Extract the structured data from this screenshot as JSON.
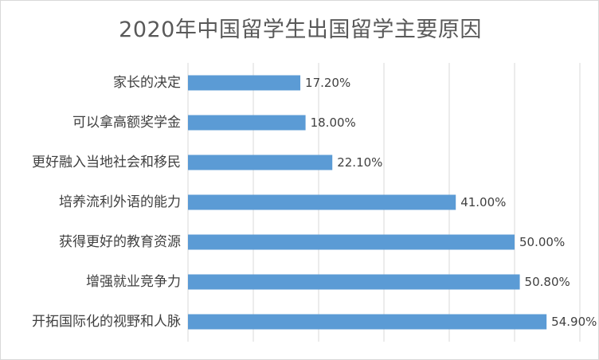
{
  "chart_data": {
    "type": "bar",
    "orientation": "horizontal",
    "title": "2020年中国留学生出国留学主要原因",
    "categories": [
      "家长的决定",
      "可以拿高额奖学金",
      "更好融入当地社会和移民",
      "培养流利外语的能力",
      "获得更好的教育资源",
      "增强就业竞争力",
      "开拓国际化的视野和人脉"
    ],
    "values": [
      17.2,
      18.0,
      22.1,
      41.0,
      50.0,
      50.8,
      54.9
    ],
    "value_labels": [
      "17.20%",
      "18.00%",
      "22.10%",
      "41.00%",
      "50.00%",
      "50.80%",
      "54.90%"
    ],
    "xlim": [
      0,
      60
    ],
    "grid": true,
    "legend": "none",
    "bar_color": "#5b9bd5"
  }
}
